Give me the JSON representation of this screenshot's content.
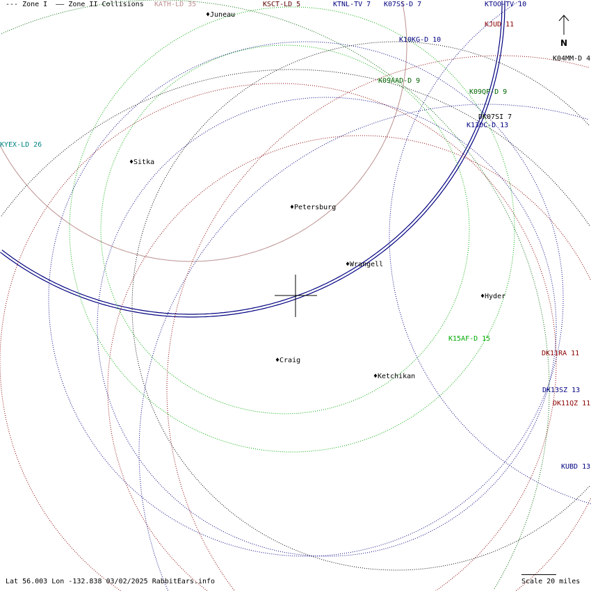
{
  "legend": {
    "zone1": "--- Zone I",
    "zone2": "—— Zone II",
    "collisions": "Collisions"
  },
  "hidden_station": {
    "label": "KATH-LD 35",
    "color": "#bc8f8f"
  },
  "stations": [
    {
      "label": "KSCT-LD 5",
      "color": "#5a0000"
    },
    {
      "label": "KTNL-TV 7",
      "color": "#000080"
    },
    {
      "label": "K07SS-D 7",
      "color": "#000080"
    },
    {
      "label": "KTOO-TV 10",
      "color": "#000080"
    },
    {
      "label": "KJUD 11",
      "color": "#8b0000"
    },
    {
      "label": "K10KG-D 10",
      "color": "#000080"
    },
    {
      "label": "K04MM-D 4",
      "color": "#000000"
    },
    {
      "label": "K09AAD-D 9",
      "color": "#006400"
    },
    {
      "label": "K09QP-D 9",
      "color": "#006400"
    },
    {
      "label": "DK07SI 7",
      "color": "#000000"
    },
    {
      "label": "K13OC-D 13",
      "color": "#000080"
    },
    {
      "label": "KYEX-LD 26",
      "color": "#008080"
    },
    {
      "label": "K15AF-D 15",
      "color": "#00aa00"
    },
    {
      "label": "DK11RA 11",
      "color": "#8b0000"
    },
    {
      "label": "DK13SZ 13",
      "color": "#000080"
    },
    {
      "label": "DK11QZ 11",
      "color": "#8b0000"
    },
    {
      "label": "KUBD 13",
      "color": "#000080"
    }
  ],
  "cities": [
    "Juneau",
    "Sitka",
    "Petersburg",
    "Wrangell",
    "Hyder",
    "Craig",
    "Ketchikan"
  ],
  "north_label": "N",
  "footer": "Lat 56.003 Lon -132.838 03/02/2025 RabbitEars.info",
  "scale": "Scale 20 miles"
}
